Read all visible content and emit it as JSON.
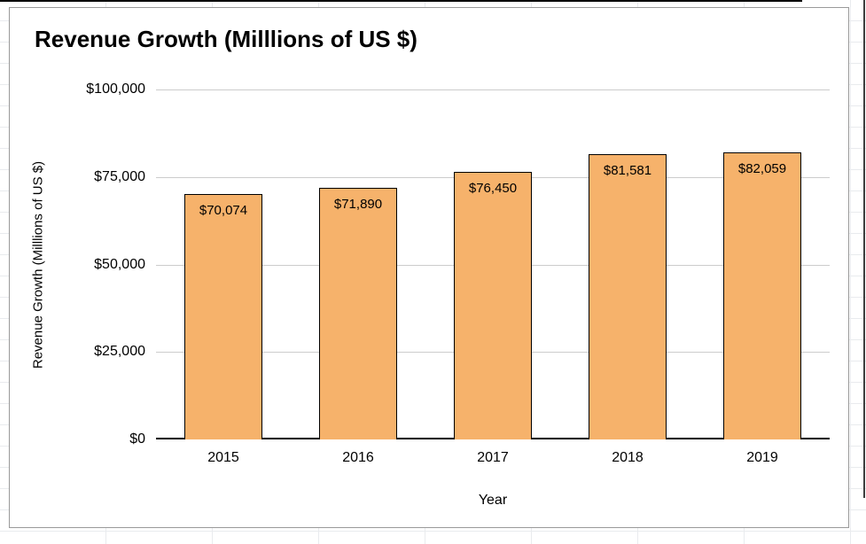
{
  "chart_data": {
    "type": "bar",
    "title": "Revenue Growth (Milllions of US $)",
    "categories": [
      "2015",
      "2016",
      "2017",
      "2018",
      "2019"
    ],
    "values": [
      70074,
      71890,
      76450,
      81581,
      82059
    ],
    "data_labels": [
      "$70,074",
      "$71,890",
      "$76,450",
      "$81,581",
      "$82,059"
    ],
    "xlabel": "Year",
    "ylabel": "Revenue Growth (Milllions of US $)",
    "y_ticks": [
      "$0",
      "$25,000",
      "$50,000",
      "$75,000",
      "$100,000"
    ],
    "ylim": [
      0,
      100000
    ],
    "grid": true,
    "legend": "none",
    "bar_color": "#f6b26b",
    "bar_border_color": "#000000",
    "gridline_color": "#cccccc",
    "axis_line_color": "#000000"
  }
}
